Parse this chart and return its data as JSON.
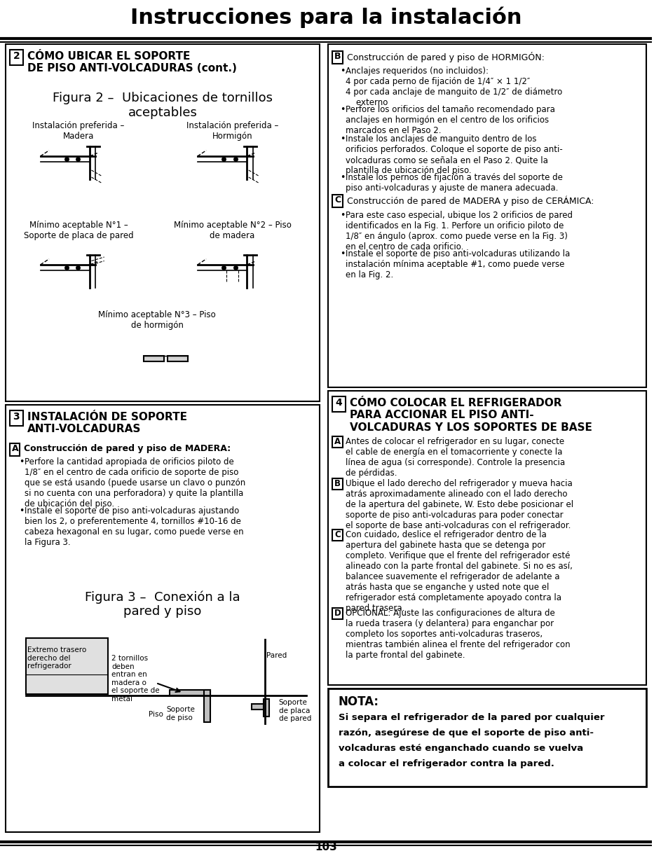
{
  "title": "Instrucciones para la instalación",
  "page_number": "103",
  "background": "#ffffff",
  "border_color": "#000000",
  "section2_header_num": "2",
  "section2_header": "CÓMO UBICAR EL SOPORTE\nDE PISO ANTI-VOLCADURAS (cont.)",
  "section2_fig_title": "Figura 2 –  Ubicaciones de tornillos\naceptables",
  "section2_labels": [
    "Instalación preferida –\nMadera",
    "Instalación preferida –\nHormigón",
    "Mínimo aceptable N°1 –\nSoporte de placa de pared",
    "Mínimo aceptable N°2 – Piso\nde madera",
    "Mínimo aceptable N°3 – Piso\nde hormigón"
  ],
  "sectionB_header_num": "B",
  "sectionB_header": "Construcción de pared y piso de HORMIGÓN:",
  "sectionB_bullets": [
    "Anclajes requeridos (no incluidos):\n4 por cada perno de fijación de 1/4″ × 1 1/2″\n4 por cada anclaje de manguito de 1/2″ de diámetro\n    externo",
    "Perfore los orificios del tamaño recomendado para\nanclajes en hormigón en el centro de los orificios\nmarcados en el Paso 2.",
    "Instale los anclajes de manguito dentro de los\norificios perforados. Coloque el soporte de piso anti-\nvolcaduras como se señala en el Paso 2. Quite la\nplantilla de ubicación del piso.",
    "Instale los pernos de fijación a través del soporte de\npiso anti-volcaduras y ajuste de manera adecuada."
  ],
  "sectionC_header_num": "C",
  "sectionC_header": "Construcción de pared de MADERA y piso de CERÁMICA:",
  "sectionC_bullets": [
    "Para este caso especial, ubique los 2 orificios de pared\nidentificados en la Fig. 1. Perfore un orificio piloto de\n1/8″ en ángulo (aprox. como puede verse en la Fig. 3)\nen el centro de cada orificio.",
    "Instale el soporte de piso anti-volcaduras utilizando la\ninstalación mínima aceptable #1, como puede verse\nen la Fig. 2."
  ],
  "section3_header_num": "3",
  "section3_header": "INSTALACIÓN DE SOPORTE\nANTI-VOLCADURAS",
  "section3A_header_num": "A",
  "section3A_header": "Construcción de pared y piso de MADERA:",
  "section3A_bullets": [
    "Perfore la cantidad apropiada de orificios piloto de\n1/8″ en el centro de cada orificio de soporte de piso\nque se está usando (puede usarse un clavo o punzón\nsi no cuenta con una perforadora) y quite la plantilla\nde ubicación del piso.",
    "Instale el soporte de piso anti-volcaduras ajustando\nbien los 2, o preferentemente 4, tornillos #10-16 de\ncabeza hexagonal en su lugar, como puede verse en\nla Figura 3."
  ],
  "section3_fig_title": "Figura 3 –  Conexión a la\npared y piso",
  "section3_fig_labels": [
    "Extremo trasero\nderecho del\nrefrigerador",
    "2 tornillos\ndeben\nentran en\nmadera o\nel soporte de\nmetal",
    "Soporte\nde piso",
    "Pared",
    "Soporte\nde placa\nde pared",
    "Piso"
  ],
  "section4_header_num": "4",
  "section4_header": "CÓMO COLOCAR EL REFRIGERADOR\nPARA ACCIONAR EL PISO ANTI-\nVOLCADURAS Y LOS SOPORTES DE BASE",
  "section4A_header_num": "A",
  "section4A_text": "Antes de colocar el refrigerador en su lugar, conecte\nel cable de energía en el tomacorriente y conecte la\nlínea de agua (si corresponde). Controle la presencia\nde pérdidas.",
  "section4B_header_num": "B",
  "section4B_text": "Ubique el lado derecho del refrigerador y mueva hacia\natrás aproximadamente alineado con el lado derecho\nde la apertura del gabinete, W. Esto debe posicionar el\nsoporte de piso anti-volcaduras para poder conectar\nel soporte de base anti-volcaduras con el refrigerador.",
  "section4C_header_num": "C",
  "section4C_text": "Con cuidado, deslice el refrigerador dentro de la\napertura del gabinete hasta que se detenga por\ncompleto. Verifique que el frente del refrigerador esté\nalineado con la parte frontal del gabinete. Si no es así,\nbalancee suavemente el refrigerador de adelante a\natrás hasta que se enganche y usted note que el\nrefrigerador está completamente apoyado contra la\npared trasera.",
  "section4D_header_num": "D",
  "section4D_text": "OPCIONAL: Ajuste las configuraciones de altura de\nla rueda trasera (y delantera) para enganchar por\ncompleto los soportes anti-volcaduras traseros,\nmientras también alinea el frente del refrigerador con\nla parte frontal del gabinete.",
  "nota_header": "NOTA:",
  "nota_text": "Si separa el refrigerador de la pared por cualquier\nrazón, asegúrese de que el soporte de piso anti-\nvolcaduras esté enganchado cuando se vuelva\na colocar el refrigerador contra la pared."
}
